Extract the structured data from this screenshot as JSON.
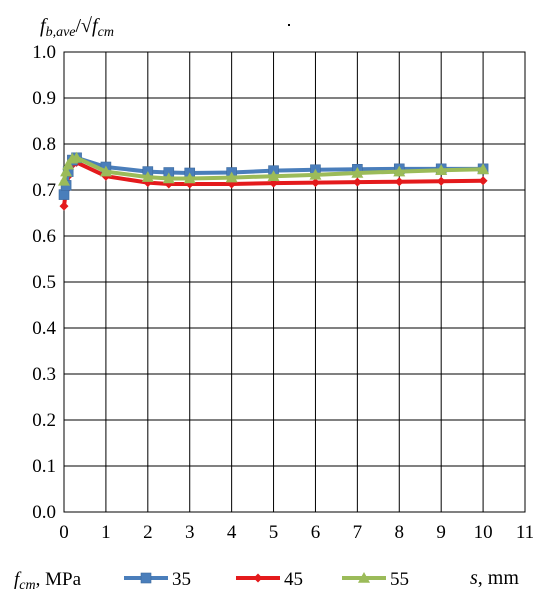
{
  "chart_data": {
    "type": "line",
    "ylabel": "f_b,ave/√f_cm",
    "ylabel_parts": {
      "base": "f",
      "sub1": "b,ave",
      "slash": "/√",
      "base2": "f",
      "sub2": "cm"
    },
    "xlabel_parts": {
      "var": "s",
      "unit": ", mm"
    },
    "xlim": [
      0,
      11
    ],
    "ylim": [
      0,
      1.0
    ],
    "x_ticks": [
      "0",
      "1",
      "2",
      "3",
      "4",
      "5",
      "6",
      "7",
      "8",
      "9",
      "10",
      "11"
    ],
    "y_ticks": [
      "0.0",
      "0.1",
      "0.2",
      "0.3",
      "0.4",
      "0.5",
      "0.6",
      "0.7",
      "0.8",
      "0.9",
      "1.0"
    ],
    "grid": true,
    "legend_placement": "bottom",
    "legend_title_parts": {
      "base": "f",
      "sub": "cm",
      "rest": ", MPa"
    },
    "series": [
      {
        "name": "35",
        "color": "#4a7ebb",
        "marker": "square",
        "x": [
          0,
          0.05,
          0.1,
          0.2,
          0.3,
          1,
          2,
          2.5,
          3,
          4,
          5,
          6,
          7,
          8,
          9,
          10
        ],
        "y": [
          0.69,
          0.71,
          0.74,
          0.765,
          0.77,
          0.75,
          0.74,
          0.738,
          0.737,
          0.738,
          0.742,
          0.744,
          0.745,
          0.746,
          0.746,
          0.746
        ]
      },
      {
        "name": "45",
        "color": "#e41a1c",
        "marker": "diamond",
        "x": [
          0,
          0.05,
          0.1,
          0.2,
          0.3,
          1,
          2,
          2.5,
          3,
          4,
          5,
          6,
          7,
          8,
          9,
          10
        ],
        "y": [
          0.665,
          0.7,
          0.73,
          0.755,
          0.76,
          0.73,
          0.716,
          0.713,
          0.713,
          0.713,
          0.715,
          0.716,
          0.717,
          0.718,
          0.719,
          0.72
        ]
      },
      {
        "name": "55",
        "color": "#9bbb59",
        "marker": "triangle",
        "x": [
          0,
          0.05,
          0.1,
          0.2,
          0.3,
          1,
          2,
          2.5,
          3,
          4,
          5,
          6,
          7,
          8,
          9,
          10
        ],
        "y": [
          0.72,
          0.74,
          0.755,
          0.768,
          0.77,
          0.74,
          0.728,
          0.725,
          0.725,
          0.727,
          0.73,
          0.733,
          0.737,
          0.74,
          0.743,
          0.745
        ]
      }
    ]
  }
}
